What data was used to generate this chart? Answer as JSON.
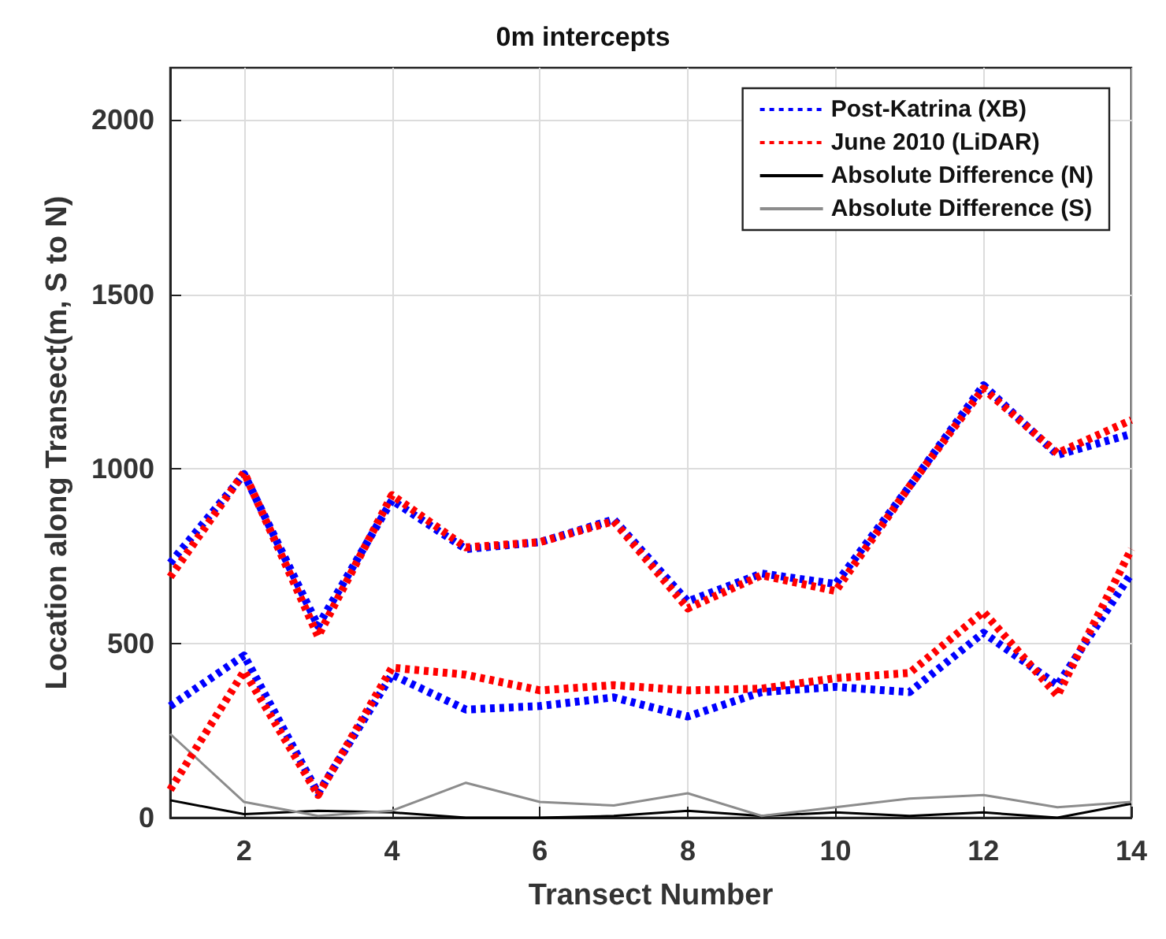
{
  "chart_data": {
    "type": "line",
    "title": "0m intercepts",
    "xlabel": "Transect Number",
    "ylabel": "Location along Transect(m, S to N)",
    "x": [
      1,
      2,
      3,
      4,
      5,
      6,
      7,
      8,
      9,
      10,
      11,
      12,
      13,
      14
    ],
    "xlim": [
      1,
      14
    ],
    "xticks": [
      2,
      4,
      6,
      8,
      10,
      12,
      14
    ],
    "ylim": [
      0,
      2150
    ],
    "yticks": [
      0,
      500,
      1000,
      1500,
      2000
    ],
    "grid": true,
    "legend": "top right",
    "marker": "none",
    "series": [
      {
        "name": "Post-Katrina (XB)",
        "color": "#0000ff",
        "line_style": "dotted",
        "values": [
          730,
          985,
          550,
          910,
          770,
          790,
          855,
          620,
          700,
          670,
          950,
          1240,
          1040,
          1100
        ]
      },
      {
        "name": "June 2010 (LiDAR)",
        "color": "#ff0000",
        "line_style": "dotted",
        "values": [
          690,
          990,
          520,
          925,
          775,
          790,
          850,
          600,
          695,
          650,
          950,
          1230,
          1045,
          1140
        ]
      },
      {
        "name": "Absolute Difference (N)",
        "color": "#000000",
        "line_style": "solid",
        "values": [
          50,
          10,
          20,
          15,
          0,
          0,
          5,
          20,
          5,
          15,
          5,
          15,
          0,
          40
        ]
      },
      {
        "name": "Absolute Difference (S)",
        "color": "#8c8c8c",
        "line_style": "solid",
        "values": [
          240,
          45,
          5,
          20,
          100,
          45,
          35,
          70,
          5,
          30,
          55,
          65,
          30,
          45
        ]
      },
      {
        "color": "#0000ff",
        "line_style": "dotted",
        "values": [
          320,
          465,
          70,
          410,
          310,
          320,
          345,
          290,
          360,
          375,
          360,
          530,
          380,
          700
        ]
      },
      {
        "color": "#ff0000",
        "line_style": "dotted",
        "values": [
          80,
          420,
          65,
          430,
          410,
          365,
          380,
          365,
          370,
          400,
          415,
          590,
          350,
          770
        ]
      }
    ]
  }
}
